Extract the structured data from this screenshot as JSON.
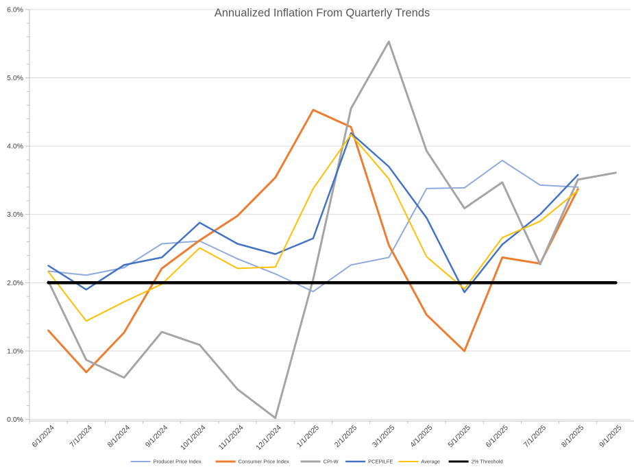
{
  "title": "Annualized Inflation From Quarterly Trends",
  "chart_data": {
    "type": "line",
    "title": "Annualized Inflation From Quarterly Trends",
    "xlabel": "",
    "ylabel": "",
    "ylim": [
      0.0,
      6.0
    ],
    "y_major_step": 1.0,
    "y_minor_step": 0.2,
    "y_tick_labels": [
      "0.0%",
      "1.0%",
      "2.0%",
      "3.0%",
      "4.0%",
      "5.0%",
      "6.0%"
    ],
    "grid": true,
    "legend_position": "bottom",
    "categories": [
      "6/1/2024",
      "7/1/2024",
      "8/1/2024",
      "9/1/2024",
      "10/1/2024",
      "11/1/2024",
      "12/1/2024",
      "1/1/2025",
      "2/1/2025",
      "3/1/2025",
      "4/1/2025",
      "5/1/2025",
      "6/1/2025",
      "7/1/2025",
      "8/1/2025",
      "9/1/2025"
    ],
    "series": [
      {
        "name": "Producer Price Index",
        "color": "#8FAADC",
        "stroke_width": 2,
        "values": [
          2.17,
          2.11,
          2.22,
          2.57,
          2.61,
          2.35,
          2.13,
          1.87,
          2.26,
          2.37,
          3.38,
          3.39,
          3.79,
          3.43,
          3.4,
          null
        ]
      },
      {
        "name": "Consumer Price Index",
        "color": "#ED7D31",
        "stroke_width": 3,
        "values": [
          1.3,
          0.69,
          1.27,
          2.21,
          2.62,
          2.98,
          3.54,
          4.53,
          4.28,
          2.55,
          1.53,
          1.0,
          2.37,
          2.28,
          3.37,
          null
        ]
      },
      {
        "name": "CPI-W",
        "color": "#A5A5A5",
        "stroke_width": 3,
        "values": [
          2.02,
          0.87,
          0.61,
          1.28,
          1.09,
          0.44,
          0.02,
          2.05,
          4.55,
          5.53,
          3.93,
          3.09,
          3.47,
          2.27,
          3.51,
          3.61
        ]
      },
      {
        "name": "PCEPILFE",
        "color": "#4472C4",
        "stroke_width": 2.5,
        "values": [
          2.25,
          1.9,
          2.26,
          2.37,
          2.88,
          2.57,
          2.42,
          2.65,
          4.19,
          3.7,
          2.95,
          1.86,
          2.56,
          3.0,
          3.58,
          null
        ]
      },
      {
        "name": "Average",
        "color": "#FFC000",
        "stroke_width": 2,
        "values": [
          2.16,
          1.44,
          1.72,
          1.98,
          2.51,
          2.21,
          2.23,
          3.38,
          4.17,
          3.52,
          2.38,
          1.91,
          2.66,
          2.9,
          3.35,
          null
        ]
      },
      {
        "name": "2% Threshold",
        "color": "#000000",
        "stroke_width": 4.5,
        "values": [
          2.0,
          2.0,
          2.0,
          2.0,
          2.0,
          2.0,
          2.0,
          2.0,
          2.0,
          2.0,
          2.0,
          2.0,
          2.0,
          2.0,
          2.0,
          2.0
        ]
      }
    ]
  },
  "style_colors": {
    "gridline": "#D9D9D9",
    "axis_line": "#BFBFBF",
    "title_text": "#595959",
    "tick_text": "#404040",
    "legend_text": "#404040"
  }
}
